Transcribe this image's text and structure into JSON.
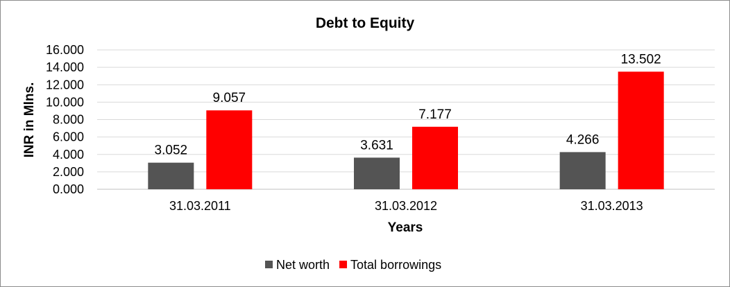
{
  "chart_data": {
    "type": "bar",
    "title": "Debt to Equity",
    "xlabel": "Years",
    "ylabel": "INR in Mlns.",
    "categories": [
      "31.03.2011",
      "31.03.2012",
      "31.03.2013"
    ],
    "series": [
      {
        "name": "Net worth",
        "values": [
          3.052,
          3.631,
          4.266
        ],
        "labels": [
          "3.052",
          "3.631",
          "4.266"
        ],
        "color": "#545454"
      },
      {
        "name": "Total borrowings",
        "values": [
          9.057,
          7.177,
          13.502
        ],
        "labels": [
          "9.057",
          "7.177",
          "13.502"
        ],
        "color": "#ff0000"
      }
    ],
    "ylim": [
      0,
      16
    ],
    "yticks": [
      "0.000",
      "2.000",
      "4.000",
      "6.000",
      "8.000",
      "10.000",
      "12.000",
      "14.000",
      "16.000"
    ],
    "grid": true,
    "legend_position": "bottom"
  }
}
